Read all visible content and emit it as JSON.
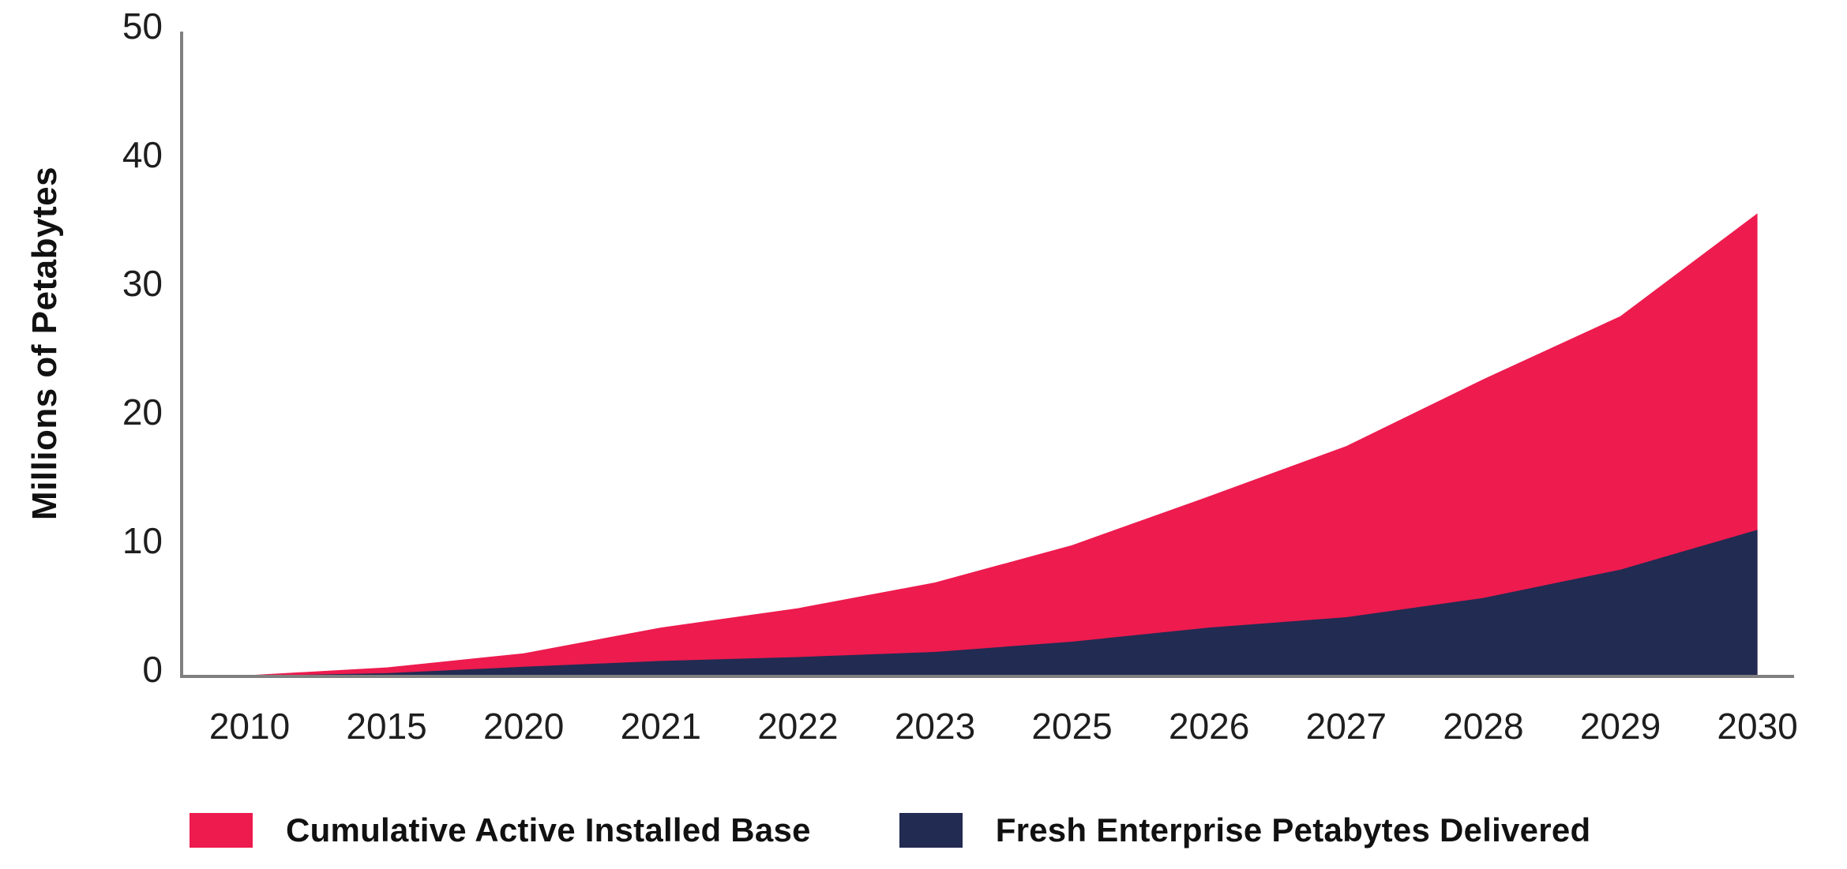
{
  "chart_data": {
    "type": "area",
    "title": "",
    "xlabel": "",
    "ylabel": "Millions of Petabytes",
    "ylim": [
      0,
      50
    ],
    "yticks": [
      0,
      10,
      20,
      30,
      40,
      50
    ],
    "grid": false,
    "legend_position": "bottom",
    "categories": [
      "2010",
      "2015",
      "2020",
      "2021",
      "2022",
      "2023",
      "2025",
      "2026",
      "2027",
      "2028",
      "2029",
      "2030"
    ],
    "series": [
      {
        "name": "Cumulative Active Installed Base",
        "color": "#ED1B4E",
        "values": [
          0.1,
          0.7,
          1.8,
          3.8,
          5.3,
          7.3,
          10.2,
          14,
          17.9,
          23.1,
          28,
          36
        ]
      },
      {
        "name": "Fresh Enterprise Petabytes Delivered",
        "color": "#222B52",
        "values": [
          0.05,
          0.25,
          0.75,
          1.2,
          1.5,
          1.9,
          2.7,
          3.8,
          4.6,
          6.1,
          8.3,
          11.4
        ]
      }
    ],
    "axis_color": "#808080",
    "tick_text_color": "#1E1E1E"
  }
}
